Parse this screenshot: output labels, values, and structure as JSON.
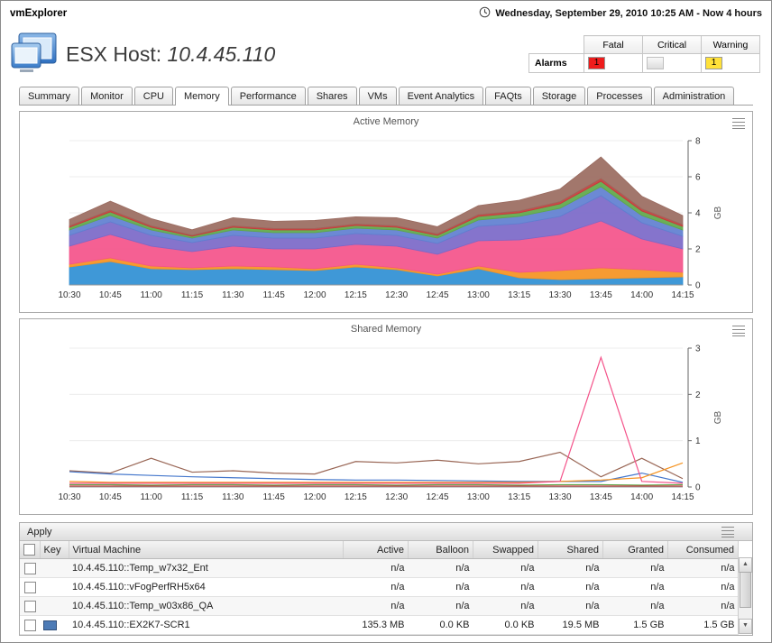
{
  "app": {
    "title": "vmExplorer",
    "timerange": "Wednesday, September 29, 2010 10:25 AM - Now 4 hours"
  },
  "header": {
    "title_prefix": "ESX Host:",
    "host": "10.4.45.110"
  },
  "alarms": {
    "label": "Alarms",
    "columns": [
      "Fatal",
      "Critical",
      "Warning"
    ],
    "counts": {
      "fatal": "1",
      "critical": "",
      "warning": "1"
    },
    "colors": {
      "fatal": "#ee1c1c",
      "critical": "#e6e6e6",
      "warning": "#ffe13a"
    }
  },
  "tabs": {
    "active_index": 3,
    "items": [
      "Summary",
      "Monitor",
      "CPU",
      "Memory",
      "Performance",
      "Shares",
      "VMs",
      "Event Analytics",
      "FAQts",
      "Storage",
      "Processes",
      "Administration"
    ]
  },
  "icons": {
    "time_range": "clock-icon",
    "chart_menu": "list-icon",
    "scroll_up": "▲",
    "scroll_down": "▼"
  },
  "chart_data": [
    {
      "type": "area",
      "stacked": true,
      "title": "Active Memory",
      "ylabel": "GB",
      "ylim": [
        0,
        8
      ],
      "yticks": [
        0,
        2,
        4,
        6,
        8
      ],
      "grid": true,
      "legend_position": "none",
      "x_labels": [
        "10:30",
        "10:45",
        "11:00",
        "11:15",
        "11:30",
        "11:45",
        "12:00",
        "12:15",
        "12:30",
        "12:45",
        "13:00",
        "13:15",
        "13:30",
        "13:45",
        "14:00",
        "14:15"
      ],
      "series": [
        {
          "name": "vm-blue",
          "color": "#2f8fd4",
          "values": [
            1.0,
            1.3,
            0.9,
            0.85,
            0.9,
            0.85,
            0.8,
            1.0,
            0.85,
            0.5,
            0.9,
            0.4,
            0.3,
            0.35,
            0.4,
            0.45
          ]
        },
        {
          "name": "vm-orange",
          "color": "#f59321",
          "values": [
            0.15,
            0.2,
            0.15,
            0.1,
            0.15,
            0.15,
            0.1,
            0.15,
            0.1,
            0.1,
            0.15,
            0.3,
            0.5,
            0.6,
            0.45,
            0.25
          ]
        },
        {
          "name": "vm-pink",
          "color": "#f4538a",
          "values": [
            1.0,
            1.3,
            1.1,
            0.9,
            1.1,
            1.0,
            1.1,
            1.1,
            1.2,
            1.1,
            1.4,
            1.8,
            2.0,
            2.6,
            1.7,
            1.3
          ]
        },
        {
          "name": "vm-violet",
          "color": "#7b68c8",
          "values": [
            0.6,
            0.7,
            0.6,
            0.5,
            0.6,
            0.6,
            0.6,
            0.6,
            0.6,
            0.6,
            0.8,
            0.9,
            1.0,
            1.4,
            0.9,
            0.7
          ]
        },
        {
          "name": "vm-slate",
          "color": "#5f7fd0",
          "values": [
            0.3,
            0.35,
            0.3,
            0.25,
            0.3,
            0.3,
            0.3,
            0.3,
            0.3,
            0.3,
            0.35,
            0.4,
            0.45,
            0.5,
            0.4,
            0.35
          ]
        },
        {
          "name": "vm-green",
          "color": "#5ea849",
          "values": [
            0.15,
            0.2,
            0.15,
            0.1,
            0.15,
            0.15,
            0.15,
            0.15,
            0.15,
            0.15,
            0.2,
            0.2,
            0.25,
            0.3,
            0.25,
            0.2
          ]
        },
        {
          "name": "vm-red",
          "color": "#c43b3b",
          "values": [
            0.08,
            0.1,
            0.08,
            0.06,
            0.08,
            0.08,
            0.08,
            0.08,
            0.08,
            0.08,
            0.1,
            0.1,
            0.12,
            0.15,
            0.12,
            0.1
          ]
        },
        {
          "name": "vm-brown",
          "color": "#9a6b60",
          "values": [
            0.35,
            0.5,
            0.4,
            0.3,
            0.45,
            0.4,
            0.45,
            0.4,
            0.45,
            0.4,
            0.5,
            0.6,
            0.7,
            1.2,
            0.7,
            0.5
          ]
        }
      ]
    },
    {
      "type": "line",
      "stacked": false,
      "title": "Shared Memory",
      "ylabel": "GB",
      "ylim": [
        0,
        3
      ],
      "yticks": [
        0,
        1,
        2,
        3
      ],
      "grid": true,
      "legend_position": "none",
      "x_labels": [
        "10:30",
        "10:45",
        "11:00",
        "11:15",
        "11:30",
        "11:45",
        "12:00",
        "12:15",
        "12:30",
        "12:45",
        "13:00",
        "13:15",
        "13:30",
        "13:45",
        "14:00",
        "14:15"
      ],
      "series": [
        {
          "name": "vm-brown",
          "color": "#996655",
          "values": [
            0.35,
            0.3,
            0.62,
            0.32,
            0.35,
            0.3,
            0.28,
            0.55,
            0.52,
            0.58,
            0.5,
            0.55,
            0.75,
            0.22,
            0.62,
            0.18
          ]
        },
        {
          "name": "vm-blue",
          "color": "#4477cc",
          "values": [
            0.33,
            0.28,
            0.25,
            0.22,
            0.2,
            0.18,
            0.16,
            0.15,
            0.15,
            0.14,
            0.13,
            0.12,
            0.12,
            0.12,
            0.3,
            0.1
          ]
        },
        {
          "name": "vm-orange",
          "color": "#f59321",
          "values": [
            0.12,
            0.1,
            0.1,
            0.1,
            0.1,
            0.1,
            0.1,
            0.1,
            0.1,
            0.1,
            0.1,
            0.1,
            0.12,
            0.15,
            0.2,
            0.52
          ]
        },
        {
          "name": "vm-green",
          "color": "#5ea849",
          "values": [
            0.05,
            0.05,
            0.04,
            0.05,
            0.05,
            0.04,
            0.05,
            0.05,
            0.04,
            0.05,
            0.05,
            0.04,
            0.05,
            0.05,
            0.04,
            0.05
          ]
        },
        {
          "name": "vm-red",
          "color": "#c43b3b",
          "values": [
            0.02,
            0.02,
            0.02,
            0.02,
            0.02,
            0.02,
            0.02,
            0.02,
            0.02,
            0.02,
            0.02,
            0.02,
            0.02,
            0.02,
            0.02,
            0.02
          ]
        },
        {
          "name": "vm-pink",
          "color": "#f4538a",
          "values": [
            0.08,
            0.08,
            0.08,
            0.08,
            0.08,
            0.08,
            0.08,
            0.08,
            0.08,
            0.08,
            0.08,
            0.08,
            0.12,
            2.8,
            0.12,
            0.08
          ]
        }
      ]
    }
  ],
  "vm_table": {
    "apply_label": "Apply",
    "columns": [
      "Key",
      "Virtual Machine",
      "Active",
      "Balloon",
      "Swapped",
      "Shared",
      "Granted",
      "Consumed"
    ],
    "rows": [
      {
        "key_color": null,
        "cells": [
          "10.4.45.110::Temp_w7x32_Ent",
          "n/a",
          "n/a",
          "n/a",
          "n/a",
          "n/a",
          "n/a"
        ]
      },
      {
        "key_color": null,
        "cells": [
          "10.4.45.110::vFogPerfRH5x64",
          "n/a",
          "n/a",
          "n/a",
          "n/a",
          "n/a",
          "n/a"
        ]
      },
      {
        "key_color": null,
        "cells": [
          "10.4.45.110::Temp_w03x86_QA",
          "n/a",
          "n/a",
          "n/a",
          "n/a",
          "n/a",
          "n/a"
        ]
      },
      {
        "key_color": "#4d7bb6",
        "cells": [
          "10.4.45.110::EX2K7-SCR1",
          "135.3 MB",
          "0.0 KB",
          "0.0 KB",
          "19.5 MB",
          "1.5 GB",
          "1.5 GB"
        ]
      }
    ]
  }
}
